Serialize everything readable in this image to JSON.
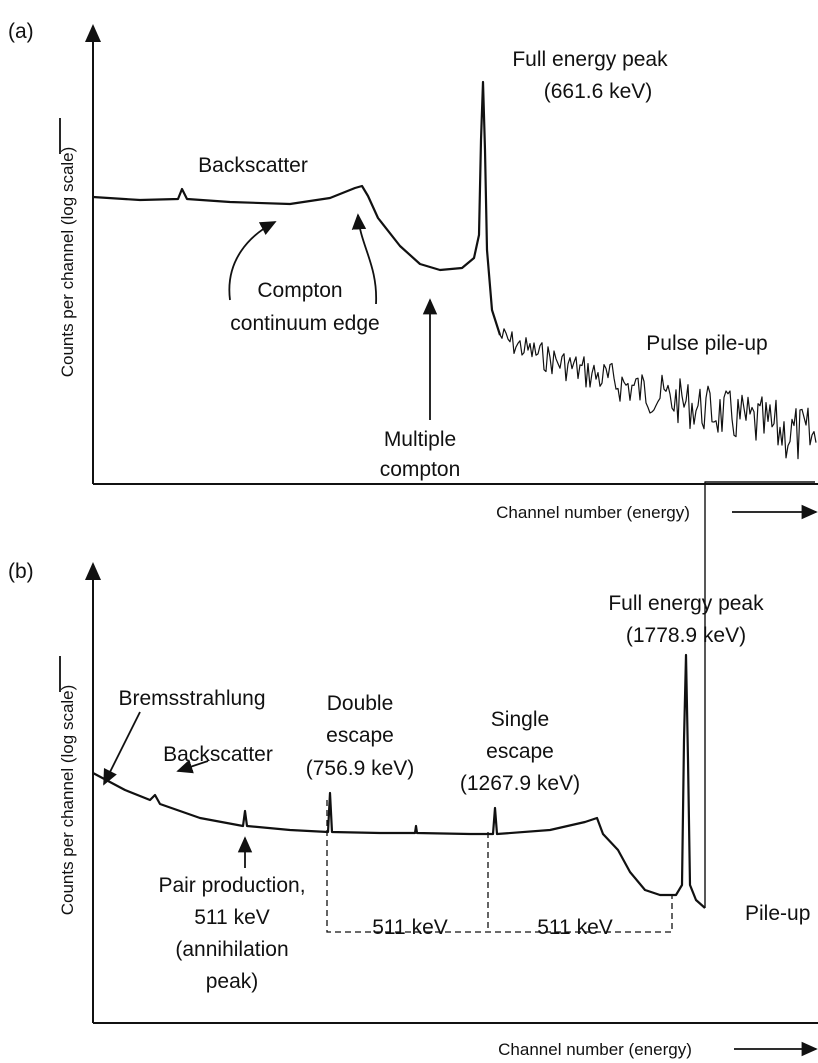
{
  "panels": [
    {
      "label": "(a)",
      "y_axis_label": "Counts per channel (log scale)",
      "x_axis_label": "Channel number (energy)",
      "annotations": [
        "Full energy peak",
        "(661.6 keV)",
        "Backscatter",
        "Compton",
        "continuum edge",
        "Pulse pile-up",
        "Multiple",
        "compton"
      ]
    },
    {
      "label": "(b)",
      "y_axis_label": "Counts per channel (log scale)",
      "x_axis_label": "Channel number (energy)",
      "annotations": [
        "Full energy peak",
        "(1778.9 keV)",
        "Bremsstrahlung",
        "Backscatter",
        "Double",
        "escape",
        "(756.9 keV)",
        "Single",
        "escape",
        "(1267.9 keV)",
        "Pair production,",
        "511 keV",
        "(annihilation",
        "peak)",
        "511 keV",
        "511 keV",
        "Pile-up"
      ]
    }
  ]
}
